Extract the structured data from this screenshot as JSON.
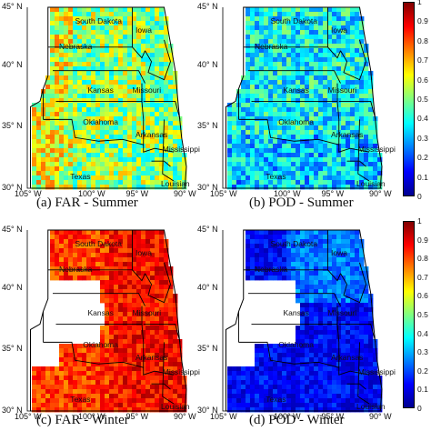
{
  "panels": [
    {
      "id": "a",
      "caption": "(a) FAR - Summer",
      "scheme": "far_summer"
    },
    {
      "id": "b",
      "caption": "(b) POD - Summer",
      "scheme": "pod_summer"
    },
    {
      "id": "c",
      "caption": "(c) FAR - Winter",
      "scheme": "far_winter"
    },
    {
      "id": "d",
      "caption": "(d) POD - Winter",
      "scheme": "pod_winter"
    }
  ],
  "lat_ticks": [
    "45° N",
    "40° N",
    "35° N",
    "30° N"
  ],
  "lon_ticks": [
    "105° W",
    "100° W",
    "95° W",
    "90° W"
  ],
  "states": [
    "South Dakota",
    "Iowa",
    "Nebraska",
    "Kansas",
    "Missouri",
    "Oklahoma",
    "Arkansas",
    "Mississippi",
    "Texas",
    "Louisian"
  ],
  "colorbar_ticks": [
    "1",
    "0.9",
    "0.8",
    "0.7",
    "0.6",
    "0.5",
    "0.4",
    "0.3",
    "0.2",
    "0.1",
    "0"
  ],
  "colormap": [
    "#00008f",
    "#0000ff",
    "#0080ff",
    "#00ffff",
    "#80ff80",
    "#ffff00",
    "#ff8000",
    "#ff0000",
    "#800000"
  ]
}
